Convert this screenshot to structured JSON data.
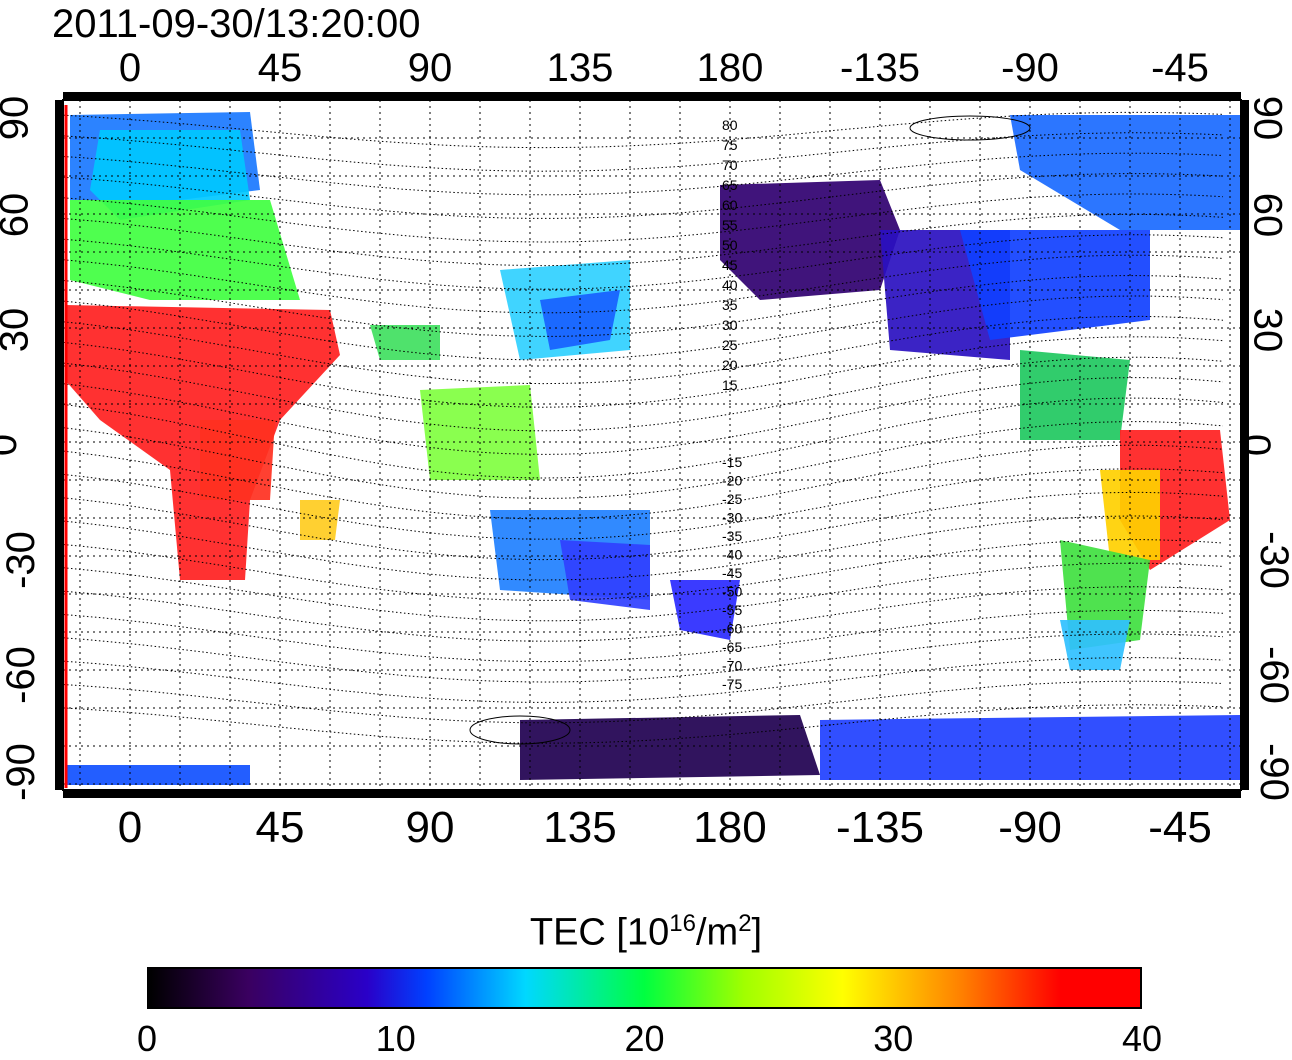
{
  "title": "2011-09-30/13:20:00",
  "lon_ticks": [
    "0",
    "45",
    "90",
    "135",
    "180",
    "-135",
    "-90",
    "-45"
  ],
  "lat_ticks": [
    "90",
    "60",
    "30",
    "0",
    "-30",
    "-60",
    "-90"
  ],
  "colorbar": {
    "label_main": "TEC  [10",
    "label_exp1": "16",
    "label_mid": "/m",
    "label_exp2": "2",
    "label_end": "]",
    "ticks": [
      "0",
      "10",
      "20",
      "30",
      "40"
    ],
    "range": [
      0,
      40
    ]
  },
  "contour_labels_north": [
    "80",
    "75",
    "70",
    "65",
    "60",
    "55",
    "50",
    "45",
    "40",
    "35",
    "30",
    "25",
    "20",
    "15"
  ],
  "contour_labels_south": [
    "-15",
    "-20",
    "-25",
    "-30",
    "-35",
    "-40",
    "-45",
    "-50",
    "-55",
    "-60",
    "-65",
    "-70",
    "-75"
  ]
}
